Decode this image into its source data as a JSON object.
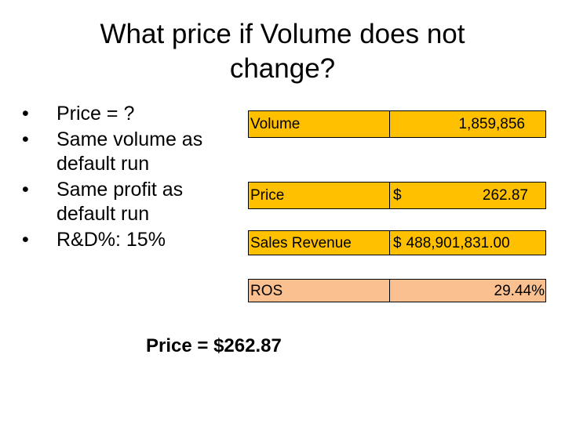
{
  "slide": {
    "title_lines": [
      "What price if Volume does not",
      "change?"
    ],
    "bullets": [
      "Price = ?",
      "Same volume as default run",
      "Same profit as default run",
      "R&D%: 15%"
    ],
    "table": {
      "rows": [
        {
          "label": "Volume",
          "currency": "",
          "value": "1,859,856",
          "color": "#ffc000"
        },
        {
          "label": "Price",
          "currency": "$",
          "value": "262.87",
          "color": "#ffc000"
        },
        {
          "label": "Sales Revenue",
          "currency": "$",
          "value": "488,901,831.00",
          "color": "#ffc000"
        },
        {
          "label": "ROS",
          "currency": "",
          "value": "29.44%",
          "color": "#fac090"
        }
      ]
    },
    "result": "Price = $262.87"
  }
}
